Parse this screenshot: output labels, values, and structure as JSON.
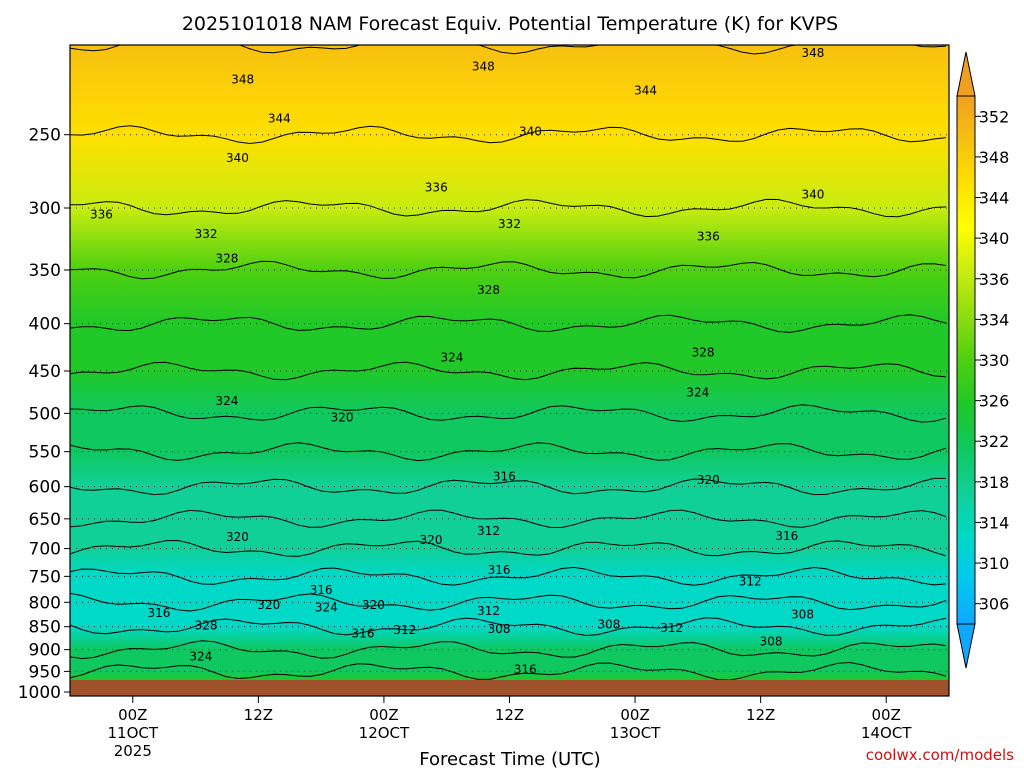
{
  "chart_data": {
    "type": "heatmap",
    "title": "2025101018 NAM Forecast Equiv. Potential Temperature (K) for KVPS",
    "xlabel": "Forecast Time (UTC)",
    "ylabel": "",
    "credit": "coolwx.com/models",
    "x_range_hours": [
      0,
      84
    ],
    "x_ticks": [
      {
        "hour": 6,
        "lines": [
          "00Z",
          "11OCT",
          "2025"
        ]
      },
      {
        "hour": 18,
        "lines": [
          "12Z"
        ]
      },
      {
        "hour": 30,
        "lines": [
          "00Z",
          "12OCT"
        ]
      },
      {
        "hour": 42,
        "lines": [
          "12Z"
        ]
      },
      {
        "hour": 54,
        "lines": [
          "00Z",
          "13OCT"
        ]
      },
      {
        "hour": 66,
        "lines": [
          "12Z"
        ]
      },
      {
        "hour": 78,
        "lines": [
          "00Z",
          "14OCT"
        ]
      }
    ],
    "y_scale": "log-pressure",
    "y_range_hPa": [
      1010,
      200
    ],
    "y_ticks": [
      250,
      300,
      350,
      400,
      450,
      500,
      550,
      600,
      650,
      700,
      750,
      800,
      850,
      900,
      950,
      1000
    ],
    "colorbar_ticks": [
      352,
      348,
      344,
      340,
      336,
      334,
      330,
      326,
      322,
      318,
      314,
      310,
      306
    ],
    "colorbar_colors": [
      "#f0a020",
      "#f7c010",
      "#ffe000",
      "#ffff00",
      "#c8ec10",
      "#8edc10",
      "#4ed010",
      "#20c828",
      "#10c860",
      "#10d098",
      "#00d8c8",
      "#00c8f0",
      "#10a8ff"
    ],
    "colorbar_range": [
      304,
      354
    ],
    "field_profile": [
      {
        "p": 200,
        "theta_e": 351
      },
      {
        "p": 250,
        "theta_e": 344
      },
      {
        "p": 300,
        "theta_e": 336
      },
      {
        "p": 350,
        "theta_e": 330
      },
      {
        "p": 400,
        "theta_e": 326
      },
      {
        "p": 450,
        "theta_e": 324
      },
      {
        "p": 500,
        "theta_e": 322
      },
      {
        "p": 550,
        "theta_e": 320
      },
      {
        "p": 600,
        "theta_e": 318
      },
      {
        "p": 650,
        "theta_e": 316
      },
      {
        "p": 700,
        "theta_e": 315
      },
      {
        "p": 750,
        "theta_e": 313
      },
      {
        "p": 800,
        "theta_e": 312
      },
      {
        "p": 850,
        "theta_e": 314
      },
      {
        "p": 900,
        "theta_e": 320
      },
      {
        "p": 950,
        "theta_e": 322
      },
      {
        "p": 1000,
        "theta_e": 324
      }
    ],
    "contour_labels": [
      {
        "text": "348",
        "hour": 16.5,
        "p": 218
      },
      {
        "text": "348",
        "hour": 39.5,
        "p": 211
      },
      {
        "text": "348",
        "hour": 71,
        "p": 204
      },
      {
        "text": "344",
        "hour": 20,
        "p": 240
      },
      {
        "text": "344",
        "hour": 55,
        "p": 224
      },
      {
        "text": "340",
        "hour": 16,
        "p": 265
      },
      {
        "text": "340",
        "hour": 44,
        "p": 248
      },
      {
        "text": "340",
        "hour": 71,
        "p": 290
      },
      {
        "text": "336",
        "hour": 3,
        "p": 305
      },
      {
        "text": "336",
        "hour": 35,
        "p": 285
      },
      {
        "text": "336",
        "hour": 61,
        "p": 322
      },
      {
        "text": "332",
        "hour": 13,
        "p": 320
      },
      {
        "text": "332",
        "hour": 42,
        "p": 312
      },
      {
        "text": "328",
        "hour": 15,
        "p": 340
      },
      {
        "text": "328",
        "hour": 40,
        "p": 368
      },
      {
        "text": "328",
        "hour": 60.5,
        "p": 430
      },
      {
        "text": "324",
        "hour": 36.5,
        "p": 435
      },
      {
        "text": "324",
        "hour": 15,
        "p": 485
      },
      {
        "text": "324",
        "hour": 60,
        "p": 475
      },
      {
        "text": "320",
        "hour": 26,
        "p": 505
      },
      {
        "text": "320",
        "hour": 61,
        "p": 590
      },
      {
        "text": "320",
        "hour": 16,
        "p": 680
      },
      {
        "text": "320",
        "hour": 34.5,
        "p": 685
      },
      {
        "text": "320",
        "hour": 19,
        "p": 805
      },
      {
        "text": "320",
        "hour": 29,
        "p": 805
      },
      {
        "text": "316",
        "hour": 41.5,
        "p": 585
      },
      {
        "text": "316",
        "hour": 68.5,
        "p": 678
      },
      {
        "text": "316",
        "hour": 41,
        "p": 738
      },
      {
        "text": "316",
        "hour": 24,
        "p": 776
      },
      {
        "text": "316",
        "hour": 8.5,
        "p": 822
      },
      {
        "text": "316",
        "hour": 28,
        "p": 865
      },
      {
        "text": "316",
        "hour": 43.5,
        "p": 945
      },
      {
        "text": "312",
        "hour": 40,
        "p": 670
      },
      {
        "text": "312",
        "hour": 65,
        "p": 760
      },
      {
        "text": "312",
        "hour": 40,
        "p": 818
      },
      {
        "text": "312",
        "hour": 32,
        "p": 857
      },
      {
        "text": "312",
        "hour": 57.5,
        "p": 853
      },
      {
        "text": "308",
        "hour": 41,
        "p": 855
      },
      {
        "text": "308",
        "hour": 51.5,
        "p": 845
      },
      {
        "text": "308",
        "hour": 70,
        "p": 825
      },
      {
        "text": "308",
        "hour": 67,
        "p": 882
      },
      {
        "text": "328",
        "hour": 13,
        "p": 848
      },
      {
        "text": "324",
        "hour": 24.5,
        "p": 810
      },
      {
        "text": "324",
        "hour": 12.5,
        "p": 915
      }
    ]
  }
}
